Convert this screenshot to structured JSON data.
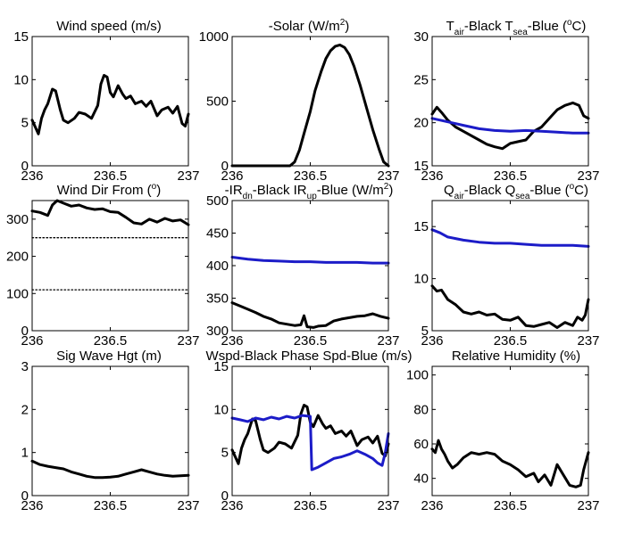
{
  "figure": {
    "panels": [
      {
        "title": "Wind speed (m/s)"
      },
      {
        "title": "-Solar (W/m",
        "title_sup": "2",
        "title_after": ")"
      },
      {
        "t1": "T",
        "t1sub": "air",
        "t2": "-Black  T",
        "t2sub": "sea",
        "t3": "-Blue (",
        "t3sup": "o",
        "t4": "C)"
      },
      {
        "title": "Wind Dir From (",
        "title_sup": "o",
        "title_after": ")"
      },
      {
        "t1": "-IR",
        "t1sub": "dn",
        "t2": "-Black  IR",
        "t2sub": "up",
        "t3": "-Blue (W/m",
        "t3sup": "2",
        "t4": ")"
      },
      {
        "t1": "Q",
        "t1sub": "air",
        "t2": "-Black  Q",
        "t2sub": "sea",
        "t3": "-Blue (",
        "t3sup": "o",
        "t4": "C)"
      },
      {
        "title": "Sig Wave Hgt (m)"
      },
      {
        "title": "Wspd-Black  Phase Spd-Blue (m/s)"
      },
      {
        "title": "Relative Humidity (%)"
      }
    ]
  },
  "chart_data": [
    {
      "type": "line",
      "title": "Wind speed (m/s)",
      "xlim": [
        236,
        237
      ],
      "ylim": [
        0,
        15
      ],
      "xticks": [
        "236",
        "236.5",
        "237"
      ],
      "yticks": [
        "0",
        "5",
        "10",
        "15"
      ],
      "series": [
        {
          "color": "#000000",
          "x": [
            236.0,
            236.02,
            236.04,
            236.06,
            236.08,
            236.1,
            236.13,
            236.15,
            236.18,
            236.2,
            236.23,
            236.27,
            236.3,
            236.34,
            236.38,
            236.42,
            236.44,
            236.46,
            236.48,
            236.5,
            236.52,
            236.55,
            236.58,
            236.6,
            236.63,
            236.66,
            236.7,
            236.73,
            236.76,
            236.8,
            236.83,
            236.87,
            236.9,
            236.93,
            236.96,
            236.98,
            237.0
          ],
          "y": [
            5.3,
            4.5,
            3.7,
            5.5,
            6.5,
            7.2,
            8.9,
            8.7,
            6.5,
            5.3,
            5.0,
            5.5,
            6.2,
            6.0,
            5.5,
            7.0,
            9.5,
            10.5,
            10.3,
            8.5,
            8.0,
            9.3,
            8.3,
            7.8,
            8.1,
            7.2,
            7.5,
            6.9,
            7.5,
            5.8,
            6.5,
            6.8,
            6.1,
            6.9,
            4.9,
            4.6,
            6.0
          ]
        }
      ]
    },
    {
      "type": "line",
      "title": "-Solar (W/m2)",
      "xlim": [
        236,
        237
      ],
      "ylim": [
        0,
        1000
      ],
      "xticks": [
        "236",
        "236.5",
        "237"
      ],
      "yticks": [
        "0",
        "500",
        "1000"
      ],
      "series": [
        {
          "color": "#000000",
          "x": [
            236.0,
            236.37,
            236.4,
            236.43,
            236.46,
            236.5,
            236.53,
            236.57,
            236.6,
            236.63,
            236.66,
            236.69,
            236.72,
            236.75,
            236.78,
            236.82,
            236.86,
            236.9,
            236.94,
            236.97,
            237.0
          ],
          "y": [
            0,
            0,
            30,
            120,
            250,
            420,
            580,
            730,
            830,
            890,
            925,
            935,
            915,
            860,
            770,
            620,
            450,
            280,
            130,
            30,
            0
          ]
        }
      ]
    },
    {
      "type": "line",
      "title": "Tair-Black  Tsea-Blue (oC)",
      "xlim": [
        236,
        237
      ],
      "ylim": [
        15,
        30
      ],
      "xticks": [
        "236",
        "236.5",
        "237"
      ],
      "yticks": [
        "15",
        "20",
        "25",
        "30"
      ],
      "series": [
        {
          "color": "#000000",
          "x": [
            236.0,
            236.03,
            236.06,
            236.1,
            236.15,
            236.2,
            236.25,
            236.3,
            236.35,
            236.4,
            236.45,
            236.5,
            236.55,
            236.6,
            236.65,
            236.7,
            236.75,
            236.8,
            236.85,
            236.9,
            236.94,
            236.97,
            237.0
          ],
          "y": [
            21.0,
            21.8,
            21.2,
            20.3,
            19.5,
            19.0,
            18.5,
            18.0,
            17.5,
            17.2,
            17.0,
            17.6,
            17.8,
            18.0,
            19.0,
            19.5,
            20.5,
            21.5,
            22.0,
            22.3,
            22.0,
            20.8,
            20.5
          ]
        },
        {
          "color": "#1c1cc8",
          "x": [
            236.0,
            236.1,
            236.2,
            236.3,
            236.4,
            236.5,
            236.6,
            236.7,
            236.8,
            236.9,
            237.0
          ],
          "y": [
            20.5,
            20.1,
            19.7,
            19.3,
            19.1,
            19.0,
            19.1,
            19.0,
            18.9,
            18.8,
            18.8
          ]
        }
      ]
    },
    {
      "type": "line",
      "title": "Wind Dir From (o)",
      "xlim": [
        236,
        237
      ],
      "ylim": [
        0,
        350
      ],
      "xticks": [
        "236",
        "236.5",
        "237"
      ],
      "yticks": [
        "0",
        "100",
        "200",
        "300"
      ],
      "series": [
        {
          "color": "#000000",
          "x": [
            236.0,
            236.05,
            236.1,
            236.13,
            236.16,
            236.2,
            236.25,
            236.3,
            236.35,
            236.4,
            236.45,
            236.5,
            236.55,
            236.6,
            236.65,
            236.7,
            236.75,
            236.8,
            236.85,
            236.9,
            236.95,
            237.0
          ],
          "y": [
            322,
            318,
            310,
            338,
            350,
            343,
            335,
            338,
            330,
            326,
            328,
            320,
            318,
            305,
            290,
            287,
            300,
            292,
            302,
            295,
            298,
            285
          ]
        },
        {
          "color": "#000000",
          "dotted": true,
          "x": [
            236.0,
            237.0
          ],
          "y": [
            250,
            250
          ]
        },
        {
          "color": "#000000",
          "dotted": true,
          "x": [
            236.0,
            237.0
          ],
          "y": [
            110,
            110
          ]
        }
      ]
    },
    {
      "type": "line",
      "title": "-IRdn-Black  IRup-Blue (W/m2)",
      "xlim": [
        236,
        237
      ],
      "ylim": [
        300,
        500
      ],
      "xticks": [
        "236",
        "236.5",
        "237"
      ],
      "yticks": [
        "300",
        "350",
        "400",
        "450",
        "500"
      ],
      "series": [
        {
          "color": "#000000",
          "x": [
            236.0,
            236.05,
            236.1,
            236.15,
            236.2,
            236.25,
            236.3,
            236.35,
            236.4,
            236.44,
            236.46,
            236.48,
            236.52,
            236.55,
            236.6,
            236.65,
            236.7,
            236.75,
            236.8,
            236.85,
            236.9,
            236.95,
            237.0
          ],
          "y": [
            343,
            338,
            333,
            328,
            322,
            318,
            312,
            310,
            308,
            309,
            323,
            306,
            305,
            307,
            308,
            315,
            318,
            320,
            322,
            323,
            326,
            322,
            319
          ]
        },
        {
          "color": "#1c1cc8",
          "x": [
            236.0,
            236.1,
            236.2,
            236.3,
            236.4,
            236.5,
            236.6,
            236.7,
            236.8,
            236.9,
            237.0
          ],
          "y": [
            413,
            410,
            408,
            407,
            406,
            406,
            405,
            405,
            405,
            404,
            404
          ]
        }
      ]
    },
    {
      "type": "line",
      "title": "Qair-Black  Qsea-Blue (oC)",
      "xlim": [
        236,
        237
      ],
      "ylim": [
        5,
        17.5
      ],
      "xticks": [
        "236",
        "236.5",
        "237"
      ],
      "yticks": [
        "5",
        "10",
        "15"
      ],
      "series": [
        {
          "color": "#000000",
          "x": [
            236.0,
            236.03,
            236.06,
            236.1,
            236.15,
            236.2,
            236.25,
            236.3,
            236.35,
            236.4,
            236.45,
            236.5,
            236.55,
            236.6,
            236.65,
            236.7,
            236.75,
            236.8,
            236.85,
            236.9,
            236.93,
            236.96,
            236.98,
            237.0
          ],
          "y": [
            9.3,
            8.8,
            8.9,
            8.0,
            7.5,
            6.8,
            6.6,
            6.8,
            6.5,
            6.6,
            6.1,
            6.0,
            6.3,
            5.5,
            5.4,
            5.6,
            5.8,
            5.3,
            5.8,
            5.5,
            6.3,
            6.0,
            6.5,
            8.0
          ]
        },
        {
          "color": "#1c1cc8",
          "x": [
            236.0,
            236.05,
            236.1,
            236.2,
            236.3,
            236.4,
            236.5,
            236.6,
            236.7,
            236.8,
            236.9,
            237.0
          ],
          "y": [
            14.7,
            14.4,
            14.0,
            13.7,
            13.5,
            13.4,
            13.4,
            13.3,
            13.2,
            13.2,
            13.2,
            13.1
          ]
        }
      ]
    },
    {
      "type": "line",
      "title": "Sig Wave Hgt (m)",
      "xlim": [
        236,
        237
      ],
      "ylim": [
        0,
        3
      ],
      "xticks": [
        "236",
        "236.5",
        "237"
      ],
      "yticks": [
        "0",
        "1",
        "2",
        "3"
      ],
      "series": [
        {
          "color": "#000000",
          "x": [
            236.0,
            236.05,
            236.1,
            236.15,
            236.2,
            236.25,
            236.3,
            236.35,
            236.4,
            236.45,
            236.5,
            236.55,
            236.6,
            236.65,
            236.7,
            236.75,
            236.8,
            236.85,
            236.9,
            236.95,
            237.0
          ],
          "y": [
            0.8,
            0.72,
            0.68,
            0.65,
            0.62,
            0.55,
            0.5,
            0.45,
            0.42,
            0.42,
            0.43,
            0.45,
            0.5,
            0.55,
            0.6,
            0.55,
            0.5,
            0.47,
            0.45,
            0.46,
            0.47
          ]
        }
      ]
    },
    {
      "type": "line",
      "title": "Wspd-Black  Phase Spd-Blue (m/s)",
      "xlim": [
        236,
        237
      ],
      "ylim": [
        0,
        15
      ],
      "xticks": [
        "236",
        "236.5",
        "237"
      ],
      "yticks": [
        "0",
        "5",
        "10",
        "15"
      ],
      "series": [
        {
          "color": "#000000",
          "x": [
            236.0,
            236.02,
            236.04,
            236.06,
            236.08,
            236.1,
            236.13,
            236.15,
            236.18,
            236.2,
            236.23,
            236.27,
            236.3,
            236.34,
            236.38,
            236.42,
            236.44,
            236.46,
            236.48,
            236.5,
            236.52,
            236.55,
            236.58,
            236.6,
            236.63,
            236.66,
            236.7,
            236.73,
            236.76,
            236.8,
            236.83,
            236.87,
            236.9,
            236.93,
            236.96,
            236.98,
            237.0
          ],
          "y": [
            5.3,
            4.5,
            3.7,
            5.5,
            6.5,
            7.2,
            8.9,
            8.7,
            6.5,
            5.3,
            5.0,
            5.5,
            6.2,
            6.0,
            5.5,
            7.0,
            9.5,
            10.5,
            10.3,
            8.5,
            8.0,
            9.3,
            8.3,
            7.8,
            8.1,
            7.2,
            7.5,
            6.9,
            7.5,
            5.8,
            6.5,
            6.8,
            6.1,
            6.9,
            4.9,
            4.6,
            6.0
          ]
        },
        {
          "color": "#1c1cc8",
          "x": [
            236.0,
            236.05,
            236.1,
            236.15,
            236.2,
            236.25,
            236.3,
            236.35,
            236.4,
            236.45,
            236.5,
            236.51,
            236.55,
            236.6,
            236.65,
            236.7,
            236.75,
            236.8,
            236.85,
            236.9,
            236.93,
            236.96,
            236.98,
            237.0
          ],
          "y": [
            9.0,
            8.8,
            8.6,
            9.0,
            8.8,
            9.1,
            8.9,
            9.2,
            9.0,
            9.3,
            9.2,
            3.0,
            3.3,
            3.8,
            4.3,
            4.5,
            4.8,
            5.2,
            4.8,
            4.3,
            3.8,
            3.5,
            5.0,
            7.2
          ]
        }
      ]
    },
    {
      "type": "line",
      "title": "Relative Humidity (%)",
      "xlim": [
        236,
        237
      ],
      "ylim": [
        30,
        105
      ],
      "xticks": [
        "236",
        "236.5",
        "237"
      ],
      "yticks": [
        "40",
        "60",
        "80",
        "100"
      ],
      "series": [
        {
          "color": "#000000",
          "x": [
            236.0,
            236.02,
            236.04,
            236.06,
            236.08,
            236.1,
            236.13,
            236.16,
            236.2,
            236.25,
            236.3,
            236.35,
            236.4,
            236.45,
            236.5,
            236.55,
            236.6,
            236.65,
            236.68,
            236.72,
            236.76,
            236.8,
            236.84,
            236.88,
            236.92,
            236.95,
            236.97,
            237.0
          ],
          "y": [
            57,
            55,
            62,
            57,
            54,
            50,
            46,
            48,
            52,
            55,
            54,
            55,
            54,
            50,
            48,
            45,
            41,
            43,
            38,
            42,
            36,
            48,
            42,
            36,
            35,
            36,
            45,
            55
          ]
        }
      ]
    }
  ]
}
